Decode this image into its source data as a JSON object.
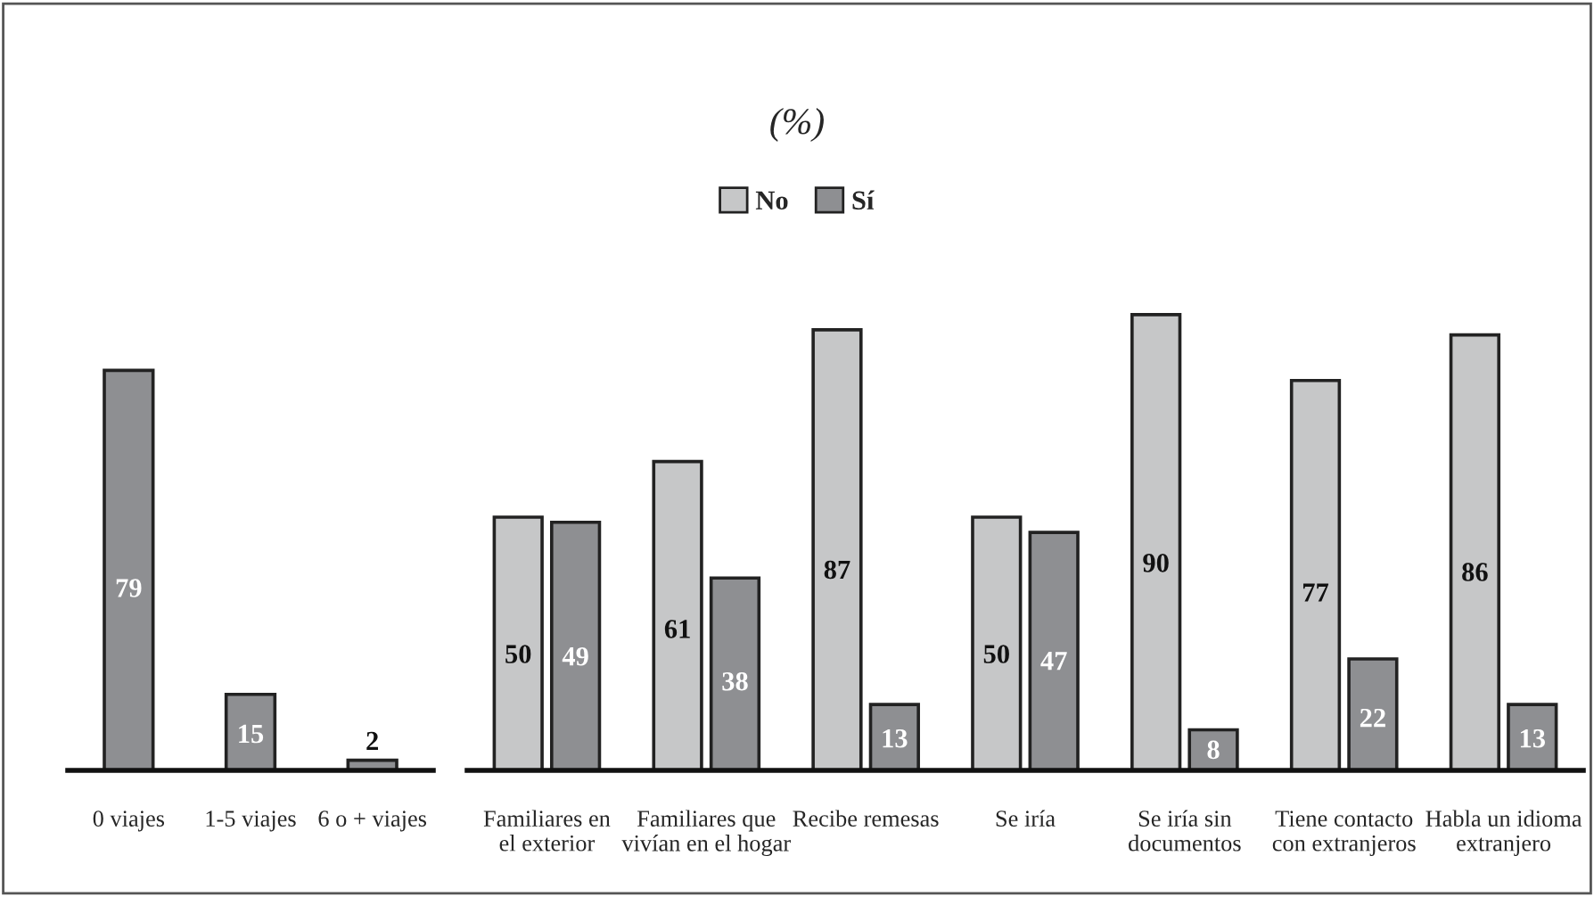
{
  "chart_data": [
    {
      "type": "bar",
      "categories": [
        "0 viajes",
        "1-5 viajes",
        "6 o + viajes"
      ],
      "series": [
        {
          "color": "#8e8f92",
          "values": [
            79,
            15,
            2
          ]
        }
      ],
      "data_labels": true,
      "legend": false,
      "grid": false
    },
    {
      "type": "bar",
      "title": "(%)",
      "categories": [
        "Familiares en\nel exterior",
        "Familiares que\nvivían en el hogar",
        "Recibe remesas",
        "Se iría",
        "Se iría sin\ndocumentos",
        "Tiene contacto\ncon extranjeros",
        "Habla un idioma\nextranjero"
      ],
      "series": [
        {
          "name": "No",
          "color": "#c6c7c8",
          "values": [
            50,
            61,
            87,
            50,
            90,
            77,
            86
          ]
        },
        {
          "name": "Sí",
          "color": "#8e8f92",
          "values": [
            49,
            38,
            13,
            47,
            8,
            22,
            13
          ]
        }
      ],
      "data_labels": true,
      "legend": "top",
      "grid": false
    }
  ]
}
